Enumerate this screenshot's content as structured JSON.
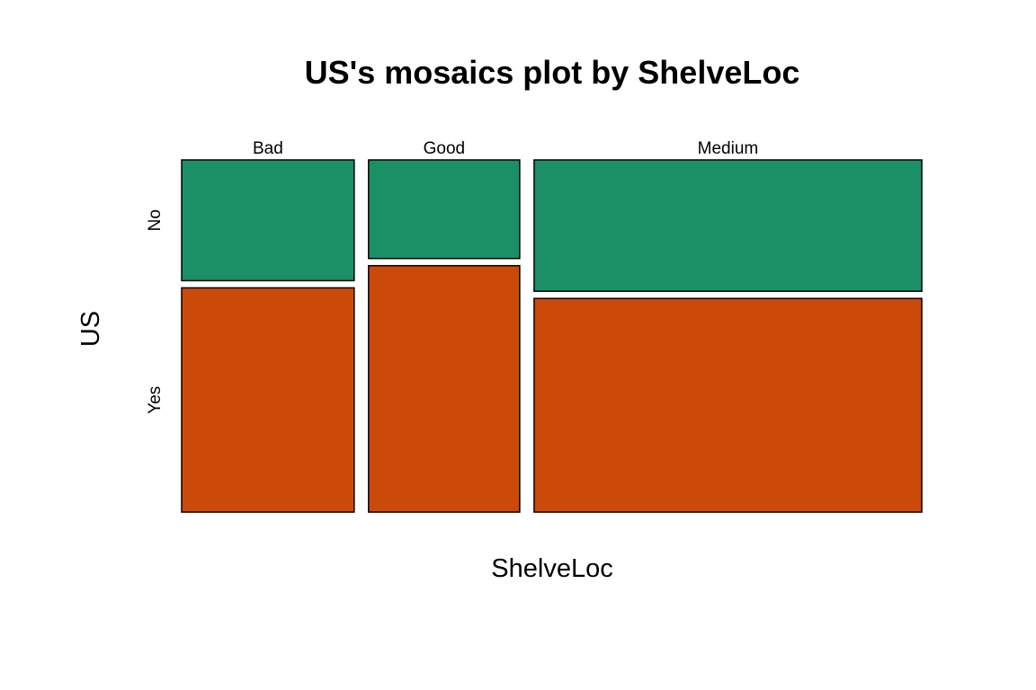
{
  "chart_data": {
    "type": "mosaic",
    "title": "US's mosaics plot by ShelveLoc",
    "xlabel": "ShelveLoc",
    "ylabel": "US",
    "x_categories": [
      "Bad",
      "Good",
      "Medium"
    ],
    "y_categories": [
      "No",
      "Yes"
    ],
    "column_shares": [
      0.2425,
      0.2125,
      0.545
    ],
    "row_shares_within_column": [
      {
        "category": "Bad",
        "No": 0.35,
        "Yes": 0.65
      },
      {
        "category": "Good",
        "No": 0.2857,
        "Yes": 0.7143
      },
      {
        "category": "Medium",
        "No": 0.3807,
        "Yes": 0.6193
      }
    ],
    "colors": {
      "No": "#1b9066",
      "Yes": "#cc4a09"
    },
    "outline_color": "#000000"
  }
}
